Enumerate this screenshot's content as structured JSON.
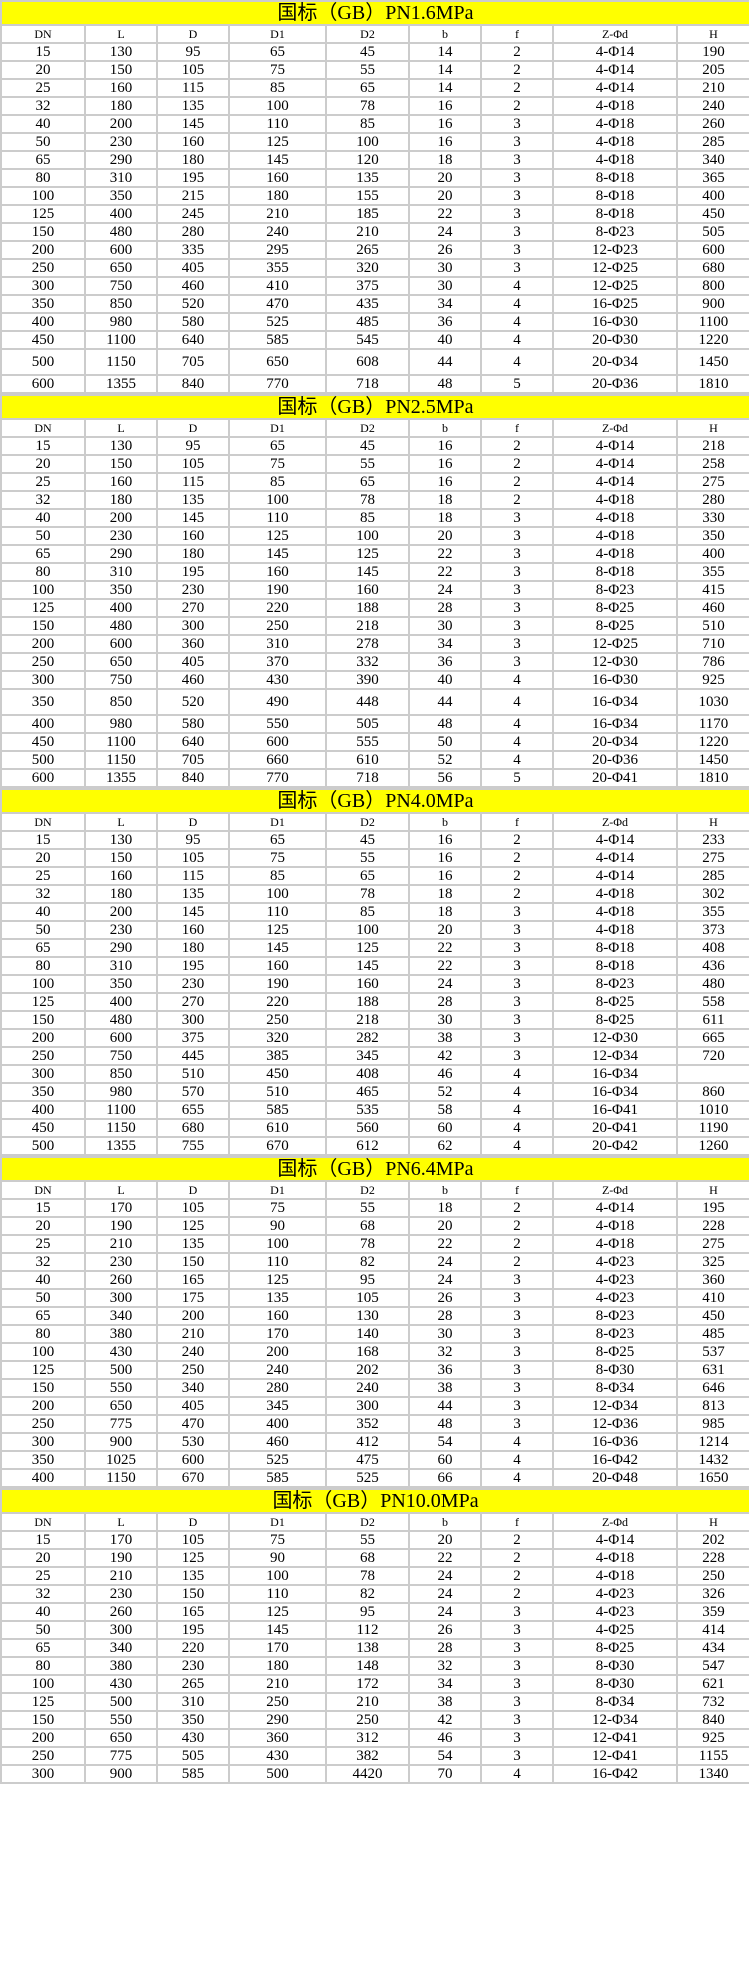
{
  "colors": {
    "title_bg": "#ffff00",
    "grid": "#cccccc"
  },
  "columns": [
    "DN",
    "L",
    "D",
    "D1",
    "D2",
    "b",
    "f",
    "Z-Φd",
    "H"
  ],
  "tables": [
    {
      "title": "国标（GB）PN1.6MPa",
      "rows": [
        [
          "15",
          "130",
          "95",
          "65",
          "45",
          "14",
          "2",
          "4-Φ14",
          "190"
        ],
        [
          "20",
          "150",
          "105",
          "75",
          "55",
          "14",
          "2",
          "4-Φ14",
          "205"
        ],
        [
          "25",
          "160",
          "115",
          "85",
          "65",
          "14",
          "2",
          "4-Φ14",
          "210"
        ],
        [
          "32",
          "180",
          "135",
          "100",
          "78",
          "16",
          "2",
          "4-Φ18",
          "240"
        ],
        [
          "40",
          "200",
          "145",
          "110",
          "85",
          "16",
          "3",
          "4-Φ18",
          "260"
        ],
        [
          "50",
          "230",
          "160",
          "125",
          "100",
          "16",
          "3",
          "4-Φ18",
          "285"
        ],
        [
          "65",
          "290",
          "180",
          "145",
          "120",
          "18",
          "3",
          "4-Φ18",
          "340"
        ],
        [
          "80",
          "310",
          "195",
          "160",
          "135",
          "20",
          "3",
          "8-Φ18",
          "365"
        ],
        [
          "100",
          "350",
          "215",
          "180",
          "155",
          "20",
          "3",
          "8-Φ18",
          "400"
        ],
        [
          "125",
          "400",
          "245",
          "210",
          "185",
          "22",
          "3",
          "8-Φ18",
          "450"
        ],
        [
          "150",
          "480",
          "280",
          "240",
          "210",
          "24",
          "3",
          "8-Φ23",
          "505"
        ],
        [
          "200",
          "600",
          "335",
          "295",
          "265",
          "26",
          "3",
          "12-Φ23",
          "600"
        ],
        [
          "250",
          "650",
          "405",
          "355",
          "320",
          "30",
          "3",
          "12-Φ25",
          "680"
        ],
        [
          "300",
          "750",
          "460",
          "410",
          "375",
          "30",
          "4",
          "12-Φ25",
          "800"
        ],
        [
          "350",
          "850",
          "520",
          "470",
          "435",
          "34",
          "4",
          "16-Φ25",
          "900"
        ],
        [
          "400",
          "980",
          "580",
          "525",
          "485",
          "36",
          "4",
          "16-Φ30",
          "1100"
        ],
        [
          "450",
          "1100",
          "640",
          "585",
          "545",
          "40",
          "4",
          "20-Φ30",
          "1220"
        ],
        [
          "500",
          "1150",
          "705",
          "650",
          "608",
          "44",
          "4",
          "20-Φ34",
          "1450"
        ],
        [
          "600",
          "1355",
          "840",
          "770",
          "718",
          "48",
          "5",
          "20-Φ36",
          "1810"
        ]
      ]
    },
    {
      "title": "国标（GB）PN2.5MPa",
      "rows": [
        [
          "15",
          "130",
          "95",
          "65",
          "45",
          "16",
          "2",
          "4-Φ14",
          "218"
        ],
        [
          "20",
          "150",
          "105",
          "75",
          "55",
          "16",
          "2",
          "4-Φ14",
          "258"
        ],
        [
          "25",
          "160",
          "115",
          "85",
          "65",
          "16",
          "2",
          "4-Φ14",
          "275"
        ],
        [
          "32",
          "180",
          "135",
          "100",
          "78",
          "18",
          "2",
          "4-Φ18",
          "280"
        ],
        [
          "40",
          "200",
          "145",
          "110",
          "85",
          "18",
          "3",
          "4-Φ18",
          "330"
        ],
        [
          "50",
          "230",
          "160",
          "125",
          "100",
          "20",
          "3",
          "4-Φ18",
          "350"
        ],
        [
          "65",
          "290",
          "180",
          "145",
          "125",
          "22",
          "3",
          "4-Φ18",
          "400"
        ],
        [
          "80",
          "310",
          "195",
          "160",
          "145",
          "22",
          "3",
          "8-Φ18",
          "355"
        ],
        [
          "100",
          "350",
          "230",
          "190",
          "160",
          "24",
          "3",
          "8-Φ23",
          "415"
        ],
        [
          "125",
          "400",
          "270",
          "220",
          "188",
          "28",
          "3",
          "8-Φ25",
          "460"
        ],
        [
          "150",
          "480",
          "300",
          "250",
          "218",
          "30",
          "3",
          "8-Φ25",
          "510"
        ],
        [
          "200",
          "600",
          "360",
          "310",
          "278",
          "34",
          "3",
          "12-Φ25",
          "710"
        ],
        [
          "250",
          "650",
          "405",
          "370",
          "332",
          "36",
          "3",
          "12-Φ30",
          "786"
        ],
        [
          "300",
          "750",
          "460",
          "430",
          "390",
          "40",
          "4",
          "16-Φ30",
          "925"
        ],
        [
          "350",
          "850",
          "520",
          "490",
          "448",
          "44",
          "4",
          "16-Φ34",
          "1030"
        ],
        [
          "400",
          "980",
          "580",
          "550",
          "505",
          "48",
          "4",
          "16-Φ34",
          "1170"
        ],
        [
          "450",
          "1100",
          "640",
          "600",
          "555",
          "50",
          "4",
          "20-Φ34",
          "1220"
        ],
        [
          "500",
          "1150",
          "705",
          "660",
          "610",
          "52",
          "4",
          "20-Φ36",
          "1450"
        ],
        [
          "600",
          "1355",
          "840",
          "770",
          "718",
          "56",
          "5",
          "20-Φ41",
          "1810"
        ]
      ]
    },
    {
      "title": "国标（GB）PN4.0MPa",
      "rows": [
        [
          "15",
          "130",
          "95",
          "65",
          "45",
          "16",
          "2",
          "4-Φ14",
          "233"
        ],
        [
          "20",
          "150",
          "105",
          "75",
          "55",
          "16",
          "2",
          "4-Φ14",
          "275"
        ],
        [
          "25",
          "160",
          "115",
          "85",
          "65",
          "16",
          "2",
          "4-Φ14",
          "285"
        ],
        [
          "32",
          "180",
          "135",
          "100",
          "78",
          "18",
          "2",
          "4-Φ18",
          "302"
        ],
        [
          "40",
          "200",
          "145",
          "110",
          "85",
          "18",
          "3",
          "4-Φ18",
          "355"
        ],
        [
          "50",
          "230",
          "160",
          "125",
          "100",
          "20",
          "3",
          "4-Φ18",
          "373"
        ],
        [
          "65",
          "290",
          "180",
          "145",
          "125",
          "22",
          "3",
          "8-Φ18",
          "408"
        ],
        [
          "80",
          "310",
          "195",
          "160",
          "145",
          "22",
          "3",
          "8-Φ18",
          "436"
        ],
        [
          "100",
          "350",
          "230",
          "190",
          "160",
          "24",
          "3",
          "8-Φ23",
          "480"
        ],
        [
          "125",
          "400",
          "270",
          "220",
          "188",
          "28",
          "3",
          "8-Φ25",
          "558"
        ],
        [
          "150",
          "480",
          "300",
          "250",
          "218",
          "30",
          "3",
          "8-Φ25",
          "611"
        ],
        [
          "200",
          "600",
          "375",
          "320",
          "282",
          "38",
          "3",
          "12-Φ30",
          "665"
        ],
        [
          "250",
          "750",
          "445",
          "385",
          "345",
          "42",
          "3",
          "12-Φ34",
          "720"
        ],
        [
          "300",
          "850",
          "510",
          "450",
          "408",
          "46",
          "4",
          "16-Φ34",
          ""
        ],
        [
          "350",
          "980",
          "570",
          "510",
          "465",
          "52",
          "4",
          "16-Φ34",
          "860"
        ],
        [
          "400",
          "1100",
          "655",
          "585",
          "535",
          "58",
          "4",
          "16-Φ41",
          "1010"
        ],
        [
          "450",
          "1150",
          "680",
          "610",
          "560",
          "60",
          "4",
          "20-Φ41",
          "1190"
        ],
        [
          "500",
          "1355",
          "755",
          "670",
          "612",
          "62",
          "4",
          "20-Φ42",
          "1260"
        ]
      ]
    },
    {
      "title": "国标（GB）PN6.4MPa",
      "rows": [
        [
          "15",
          "170",
          "105",
          "75",
          "55",
          "18",
          "2",
          "4-Φ14",
          "195"
        ],
        [
          "20",
          "190",
          "125",
          "90",
          "68",
          "20",
          "2",
          "4-Φ18",
          "228"
        ],
        [
          "25",
          "210",
          "135",
          "100",
          "78",
          "22",
          "2",
          "4-Φ18",
          "275"
        ],
        [
          "32",
          "230",
          "150",
          "110",
          "82",
          "24",
          "2",
          "4-Φ23",
          "325"
        ],
        [
          "40",
          "260",
          "165",
          "125",
          "95",
          "24",
          "3",
          "4-Φ23",
          "360"
        ],
        [
          "50",
          "300",
          "175",
          "135",
          "105",
          "26",
          "3",
          "4-Φ23",
          "410"
        ],
        [
          "65",
          "340",
          "200",
          "160",
          "130",
          "28",
          "3",
          "8-Φ23",
          "450"
        ],
        [
          "80",
          "380",
          "210",
          "170",
          "140",
          "30",
          "3",
          "8-Φ23",
          "485"
        ],
        [
          "100",
          "430",
          "240",
          "200",
          "168",
          "32",
          "3",
          "8-Φ25",
          "537"
        ],
        [
          "125",
          "500",
          "250",
          "240",
          "202",
          "36",
          "3",
          "8-Φ30",
          "631"
        ],
        [
          "150",
          "550",
          "340",
          "280",
          "240",
          "38",
          "3",
          "8-Φ34",
          "646"
        ],
        [
          "200",
          "650",
          "405",
          "345",
          "300",
          "44",
          "3",
          "12-Φ34",
          "813"
        ],
        [
          "250",
          "775",
          "470",
          "400",
          "352",
          "48",
          "3",
          "12-Φ36",
          "985"
        ],
        [
          "300",
          "900",
          "530",
          "460",
          "412",
          "54",
          "4",
          "16-Φ36",
          "1214"
        ],
        [
          "350",
          "1025",
          "600",
          "525",
          "475",
          "60",
          "4",
          "16-Φ42",
          "1432"
        ],
        [
          "400",
          "1150",
          "670",
          "585",
          "525",
          "66",
          "4",
          "20-Φ48",
          "1650"
        ]
      ]
    },
    {
      "title": "国标（GB）PN10.0MPa",
      "rows": [
        [
          "15",
          "170",
          "105",
          "75",
          "55",
          "20",
          "2",
          "4-Φ14",
          "202"
        ],
        [
          "20",
          "190",
          "125",
          "90",
          "68",
          "22",
          "2",
          "4-Φ18",
          "228"
        ],
        [
          "25",
          "210",
          "135",
          "100",
          "78",
          "24",
          "2",
          "4-Φ18",
          "250"
        ],
        [
          "32",
          "230",
          "150",
          "110",
          "82",
          "24",
          "2",
          "4-Φ23",
          "326"
        ],
        [
          "40",
          "260",
          "165",
          "125",
          "95",
          "24",
          "3",
          "4-Φ23",
          "359"
        ],
        [
          "50",
          "300",
          "195",
          "145",
          "112",
          "26",
          "3",
          "4-Φ25",
          "414"
        ],
        [
          "65",
          "340",
          "220",
          "170",
          "138",
          "28",
          "3",
          "8-Φ25",
          "434"
        ],
        [
          "80",
          "380",
          "230",
          "180",
          "148",
          "32",
          "3",
          "8-Φ30",
          "547"
        ],
        [
          "100",
          "430",
          "265",
          "210",
          "172",
          "34",
          "3",
          "8-Φ30",
          "621"
        ],
        [
          "125",
          "500",
          "310",
          "250",
          "210",
          "38",
          "3",
          "8-Φ34",
          "732"
        ],
        [
          "150",
          "550",
          "350",
          "290",
          "250",
          "42",
          "3",
          "12-Φ34",
          "840"
        ],
        [
          "200",
          "650",
          "430",
          "360",
          "312",
          "46",
          "3",
          "12-Φ41",
          "925"
        ],
        [
          "250",
          "775",
          "505",
          "430",
          "382",
          "54",
          "3",
          "12-Φ41",
          "1155"
        ],
        [
          "300",
          "900",
          "585",
          "500",
          "4420",
          "70",
          "4",
          "16-Φ42",
          "1340"
        ]
      ]
    }
  ]
}
